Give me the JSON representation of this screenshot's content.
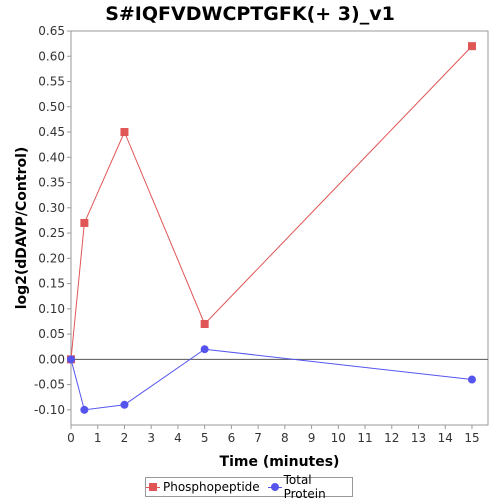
{
  "chart_data": {
    "type": "line",
    "title": "S#IQFVDWCPTGFK(+ 3)_v1",
    "xlabel": "Time (minutes)",
    "ylabel": "log2(dDAVP/Control)",
    "xlim": [
      0,
      15.6
    ],
    "ylim": [
      -0.13,
      0.65
    ],
    "x_ticks": [
      0,
      1,
      2,
      3,
      4,
      5,
      6,
      7,
      8,
      9,
      10,
      11,
      12,
      13,
      14,
      15
    ],
    "y_ticks": [
      -0.1,
      -0.05,
      0.0,
      0.05,
      0.1,
      0.15,
      0.2,
      0.25,
      0.3,
      0.35,
      0.4,
      0.45,
      0.5,
      0.55,
      0.6,
      0.65
    ],
    "y_tick_labels": [
      "-0.10",
      "-0.05",
      "0.00",
      "0.05",
      "0.10",
      "0.15",
      "0.20",
      "0.25",
      "0.30",
      "0.35",
      "0.40",
      "0.45",
      "0.50",
      "0.55",
      "0.60",
      "0.65"
    ],
    "x": [
      0,
      0.5,
      2,
      5,
      15
    ],
    "series": [
      {
        "name": "Phosphopeptide",
        "values": [
          0.0,
          0.27,
          0.45,
          0.07,
          0.62
        ],
        "color": "#e05555",
        "marker": "square"
      },
      {
        "name": "Total Protein",
        "values": [
          0.0,
          -0.1,
          -0.09,
          0.02,
          -0.04
        ],
        "color": "#5555ee",
        "marker": "circle"
      }
    ],
    "zero_line": true,
    "grid": false,
    "legend_position": "bottom"
  }
}
